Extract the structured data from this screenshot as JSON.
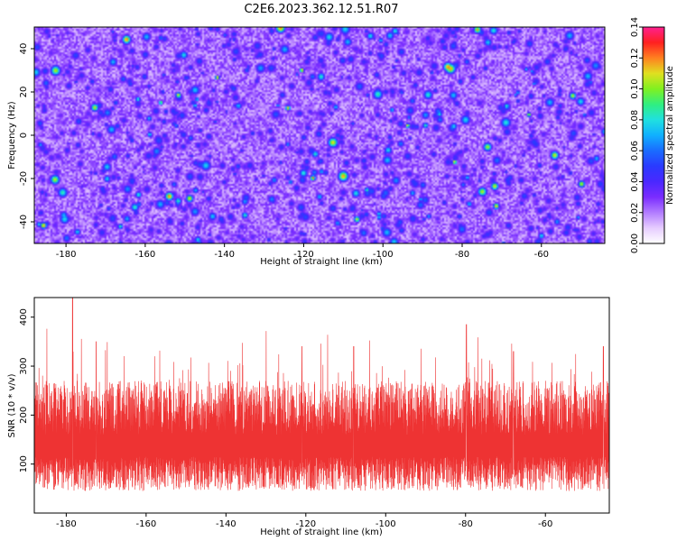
{
  "figure": {
    "title": "C2E6.2023.362.12.51.R07"
  },
  "colors": {
    "snr_line": "#ee3333",
    "colormap": [
      "#ffffff",
      "#e6ccff",
      "#b27cff",
      "#7a2cff",
      "#4a28ff",
      "#2a3aff",
      "#1a6cff",
      "#10b0ff",
      "#20e0e0",
      "#30ef80",
      "#80f020",
      "#e0e020",
      "#ff8020",
      "#ff2020",
      "#ff2090"
    ]
  },
  "chart_data": [
    {
      "type": "heatmap",
      "title": "C2E6.2023.362.12.51.R07",
      "xlabel": "Height of straight line (km)",
      "ylabel": "Frequency (Hz)",
      "xlim": [
        -188,
        -44
      ],
      "ylim": [
        -50,
        50
      ],
      "x_ticks": [
        -180,
        -160,
        -140,
        -120,
        -100,
        -80,
        -60
      ],
      "y_ticks": [
        -40,
        -20,
        0,
        20,
        40
      ],
      "colorbar": {
        "label": "Normalized spectral amplitude",
        "range": [
          0,
          0.14
        ],
        "ticks": [
          "0.00",
          "0.02",
          "0.04",
          "0.06",
          "0.08",
          "0.10",
          "0.12",
          "0.14"
        ]
      },
      "grid": false,
      "note_values": "dense speckled field; background level ~0.02–0.04 with scattered peaks up to ~0.13"
    },
    {
      "type": "line",
      "xlabel": "Height of straight line (km)",
      "ylabel": "SNR (10 * v/v)",
      "xlim": [
        -188,
        -44
      ],
      "ylim": [
        0,
        440
      ],
      "x_ticks": [
        -180,
        -160,
        -140,
        -120,
        -100,
        -80,
        -60
      ],
      "y_ticks": [
        100,
        200,
        300,
        400
      ],
      "grid": false,
      "series": [
        {
          "x_start": -188,
          "x_end": -44,
          "typical_range": [
            40,
            220
          ],
          "mean": 120,
          "peaks": [
            {
              "x": -178.4,
              "y": 440
            },
            {
              "x": -79.8,
              "y": 385
            },
            {
              "x": -172.5,
              "y": 350
            },
            {
              "x": -108.0,
              "y": 340
            },
            {
              "x": -68.0,
              "y": 330
            },
            {
              "x": -121.0,
              "y": 340
            },
            {
              "x": -45.5,
              "y": 340
            }
          ]
        }
      ]
    }
  ]
}
